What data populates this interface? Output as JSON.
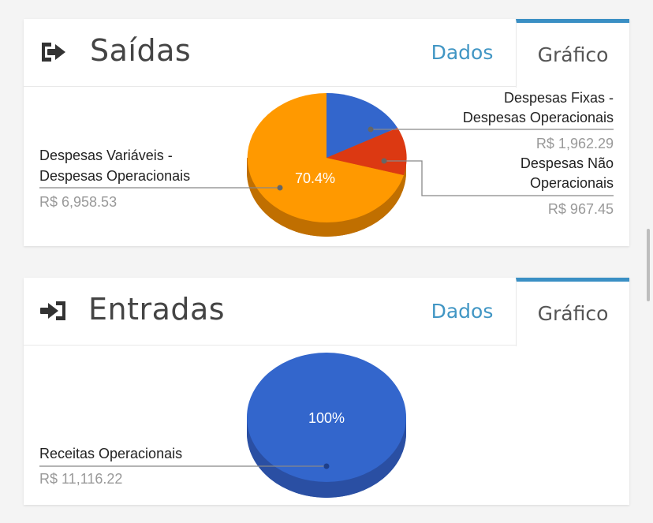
{
  "colors": {
    "accent": "#4196c4",
    "tab_indicator": "#3a8fc4",
    "blue_slice": "#3366cc",
    "orange_slice": "#ff9900",
    "red_slice": "#dc3912"
  },
  "saidas": {
    "icon": "sign-out-icon",
    "title": "Saídas",
    "tabs": {
      "dados": "Dados",
      "grafico": "Gráfico"
    },
    "chart_data": {
      "type": "pie",
      "style": "3d",
      "slices": [
        {
          "label_line1": "Despesas Fixas -",
          "label_line2": "Despesas Operacionais",
          "amount": "R$ 1,962.29",
          "value": 1962.29,
          "color": "#3366cc"
        },
        {
          "label_line1": "Despesas Não",
          "label_line2": "Operacionais",
          "amount": "R$ 967.45",
          "value": 967.45,
          "color": "#dc3912"
        },
        {
          "label_line1": "Despesas Variáveis -",
          "label_line2": "Despesas Operacionais",
          "amount": "R$ 6,958.53",
          "value": 6958.53,
          "color": "#ff9900",
          "percent_label": "70.4%"
        }
      ]
    }
  },
  "entradas": {
    "icon": "sign-in-icon",
    "title": "Entradas",
    "tabs": {
      "dados": "Dados",
      "grafico": "Gráfico"
    },
    "chart_data": {
      "type": "pie",
      "style": "3d",
      "slices": [
        {
          "label_line1": "Receitas Operacionais",
          "amount": "R$ 11,116.22",
          "value": 11116.22,
          "color": "#3366cc",
          "percent_label": "100%"
        }
      ]
    }
  }
}
